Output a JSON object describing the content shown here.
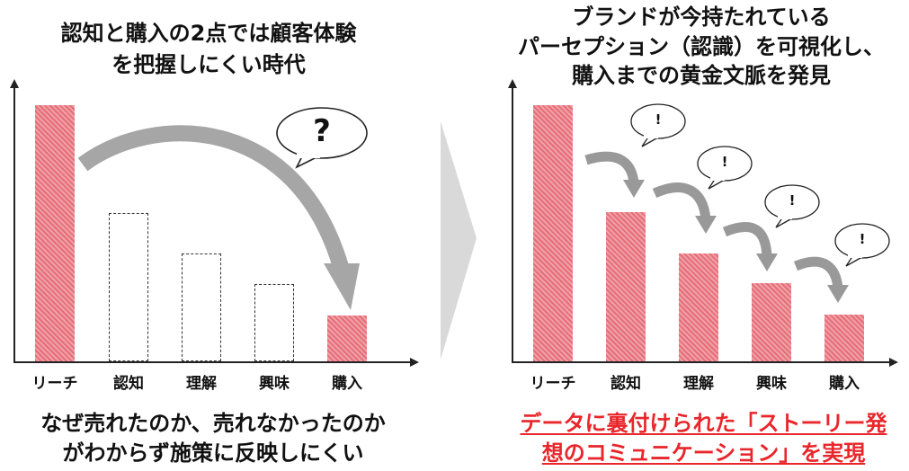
{
  "left": {
    "title_lines": [
      "認知と購入の2点では顧客体験",
      "を把握しにくい時代"
    ],
    "categories": [
      "リーチ",
      "認知",
      "理解",
      "興味",
      "購入"
    ],
    "question_mark": "?",
    "caption_lines": [
      "なぜ売れたのか、売れなかったのか",
      "がわからず施策に反映しにくい"
    ]
  },
  "right": {
    "title_lines": [
      "ブランドが今持たれている",
      "パーセプション（認識）を可視化し、",
      "購入までの黄金文脈を発見"
    ],
    "categories": [
      "リーチ",
      "認知",
      "理解",
      "興味",
      "購入"
    ],
    "exclamation": "!",
    "caption_lines": [
      "データに裏付けられた「ストーリー発",
      "想のコミュニケーション」を実現"
    ]
  },
  "colors": {
    "bar_fill": "#e66e78",
    "caption_accent": "#e8262b",
    "arrow_gray": "#999999",
    "divider_arrow": "#d9d9d9"
  },
  "icons": [
    "speech-bubble-icon",
    "curved-arrow-icon",
    "chevron-right-icon"
  ]
}
